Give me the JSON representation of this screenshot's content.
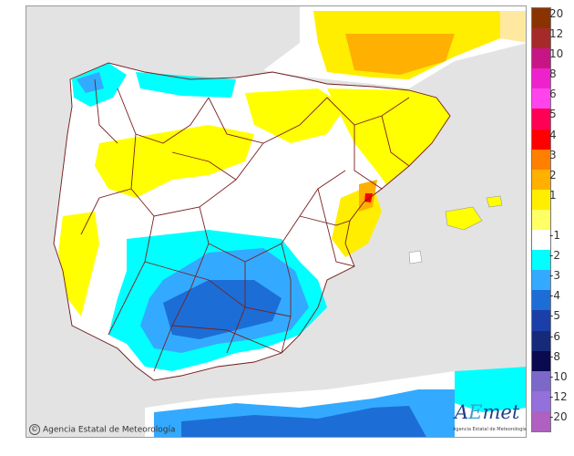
{
  "colors": {
    "sea": "#e3e3e3",
    "land": "#ffffff",
    "outside_land": "#f1f1f1",
    "border_line": "#7a1f1f",
    "yellow_1_2": "#ffff00",
    "yellow_2": "#ffe600",
    "orange_2_3": "#ffb000",
    "orange_3_4": "#ff7f00",
    "red_4_5": "#ff0000",
    "cyan_-1_-2": "#00ffff",
    "lightblue_-2_-3": "#33aaff",
    "blue_-3_-4": "#1c6ed6",
    "darkblue_-4_-5": "#1b3fa8"
  },
  "legend": {
    "items": [
      {
        "label": "20",
        "color": "#8b3300"
      },
      {
        "label": "12",
        "color": "#a52a2a"
      },
      {
        "label": "10",
        "color": "#c71585"
      },
      {
        "label": "8",
        "color": "#ee22cc"
      },
      {
        "label": "6",
        "color": "#ff44ee"
      },
      {
        "label": "5",
        "color": "#ff0055"
      },
      {
        "label": "4",
        "color": "#ff0000"
      },
      {
        "label": "3",
        "color": "#ff7f00"
      },
      {
        "label": "2",
        "color": "#ffb000"
      },
      {
        "label": "1",
        "color": "#ffee00"
      },
      {
        "label": "",
        "color": "#ffff66"
      },
      {
        "label": "-1",
        "color": "#ffffff"
      },
      {
        "label": "-2",
        "color": "#00ffff"
      },
      {
        "label": "-3",
        "color": "#33aaff"
      },
      {
        "label": "-4",
        "color": "#1c6ed6"
      },
      {
        "label": "-5",
        "color": "#1b3fa8"
      },
      {
        "label": "-6",
        "color": "#162a7a"
      },
      {
        "label": "-8",
        "color": "#0a0a50"
      },
      {
        "label": "-10",
        "color": "#7b68c8"
      },
      {
        "label": "-12",
        "color": "#9370db"
      },
      {
        "label": "-20",
        "color": "#b060c0"
      }
    ]
  },
  "copyright_text": "Agencia Estatal de Meteorología",
  "logo": {
    "word_a": "A",
    "word_e": "E",
    "word_met": "met",
    "subtitle": "Agencia Estatal de Meteorología"
  }
}
